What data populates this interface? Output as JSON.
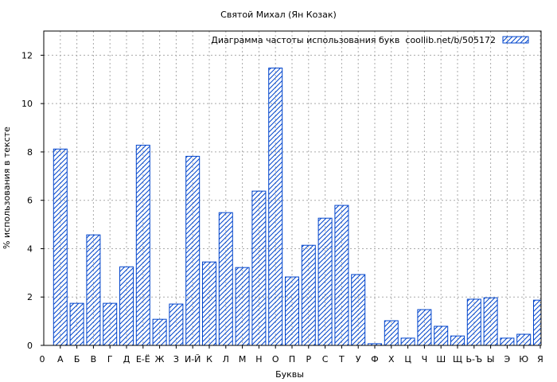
{
  "chart_data": {
    "type": "bar",
    "title": "Святой Михал (Ян Козак)",
    "xlabel": "Буквы",
    "ylabel": "% использования в тексте",
    "x_origin_label": "0",
    "categories": [
      "А",
      "Б",
      "В",
      "Г",
      "Д",
      "Е-Ё",
      "Ж",
      "З",
      "И-Й",
      "К",
      "Л",
      "М",
      "Н",
      "О",
      "П",
      "Р",
      "С",
      "Т",
      "У",
      "Ф",
      "Х",
      "Ц",
      "Ч",
      "Ш",
      "Щ",
      "Ь-Ъ",
      "Ы",
      "Э",
      "Ю",
      "Я"
    ],
    "values": [
      8.12,
      1.74,
      4.57,
      1.74,
      3.25,
      8.28,
      1.08,
      1.71,
      7.82,
      3.45,
      5.49,
      3.22,
      6.38,
      11.47,
      2.83,
      4.14,
      5.26,
      5.79,
      2.93,
      0.07,
      1.02,
      0.3,
      1.48,
      0.79,
      0.39,
      1.91,
      1.97,
      0.3,
      0.46,
      1.87
    ],
    "series_name": "Диаграмма частоты использования букв  coollib.net/b/505172",
    "ylim": [
      0,
      13
    ],
    "yticks": [
      0,
      2,
      4,
      6,
      8,
      10,
      12
    ],
    "grid": true,
    "legend_position": "top-right",
    "bar_color": "#0044cc",
    "fill_pattern": "diagonal-hatch"
  }
}
